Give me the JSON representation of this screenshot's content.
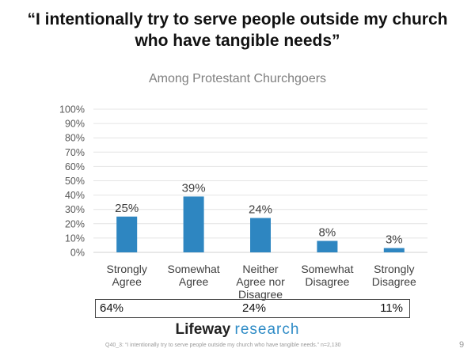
{
  "header": {
    "title_line1": "“I intentionally try to serve people outside my church",
    "title_line2": "who have tangible needs”"
  },
  "chart_data": {
    "type": "bar",
    "title": "Among Protestant Churchgoers",
    "categories": [
      [
        "Strongly",
        "Agree"
      ],
      [
        "Somewhat",
        "Agree"
      ],
      [
        "Neither",
        "Agree nor",
        "Disagree"
      ],
      [
        "Somewhat",
        "Disagree"
      ],
      [
        "Strongly",
        "Disagree"
      ]
    ],
    "values": [
      25,
      39,
      24,
      8,
      3
    ],
    "data_labels": [
      "25%",
      "39%",
      "24%",
      "8%",
      "3%"
    ],
    "yticks": [
      "0%",
      "10%",
      "20%",
      "30%",
      "40%",
      "50%",
      "60%",
      "70%",
      "80%",
      "90%",
      "100%"
    ],
    "ylim": [
      0,
      100
    ],
    "grid": true,
    "bar_color": "#2e86c1",
    "xlabel": "",
    "ylabel": ""
  },
  "summary": {
    "agree": "64%",
    "neither": "24%",
    "disagree": "11%"
  },
  "logo": {
    "part1": "Lifeway",
    "part2": "research"
  },
  "footnote": "Q40_3: “I intentionally try to serve people outside my church who have tangible needs.”  n=2,130",
  "page_number": "9"
}
